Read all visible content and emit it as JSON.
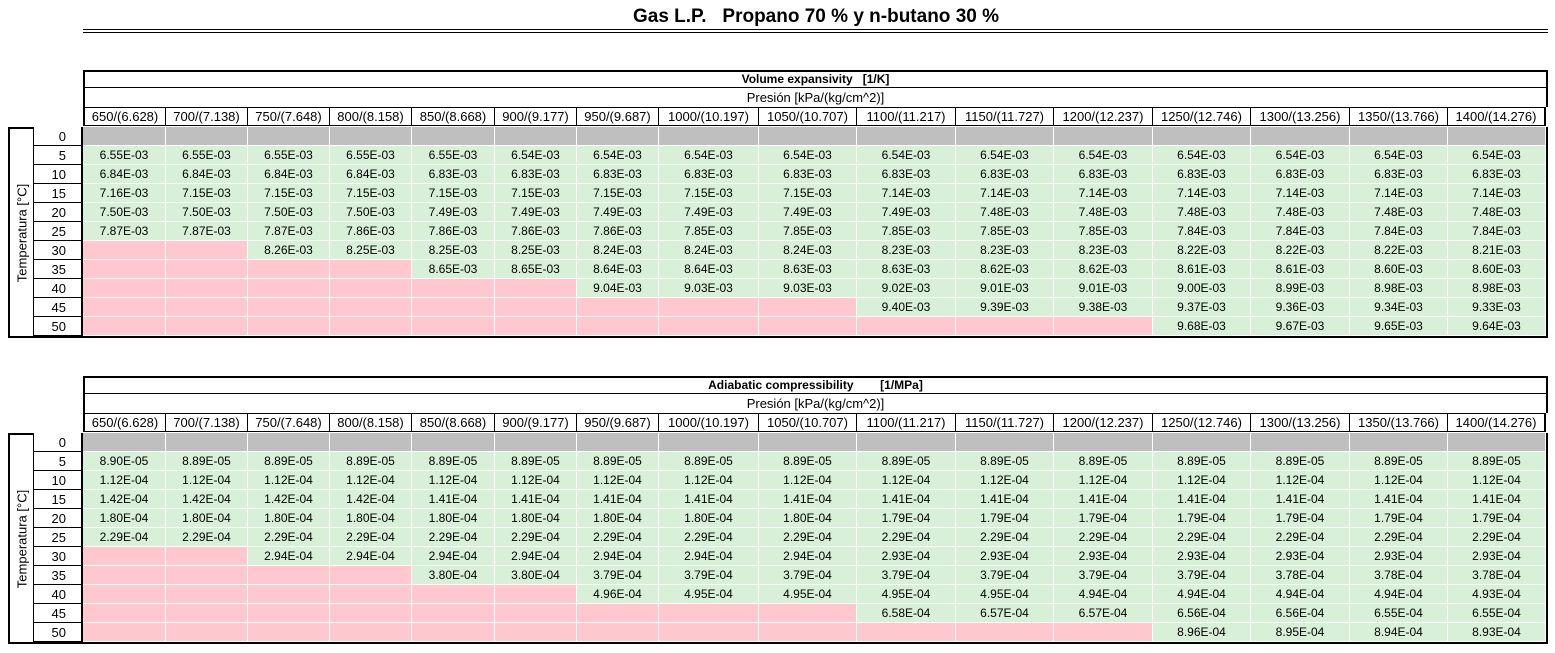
{
  "title": "Gas L.P.   Propano 70 % y n-butano 30 %",
  "colors": {
    "gray": "#bfbfbf",
    "green": "#d8f0d8",
    "pink": "#ffc7ce"
  },
  "pressures": [
    "650/(6.628)",
    "700/(7.138)",
    "750/(7.648)",
    "800/(8.158)",
    "850/(8.668)",
    "900/(9.177)",
    "950/(9.687)",
    "1000/(10.197)",
    "1050/(10.707)",
    "1100/(11.217)",
    "1150/(11.727)",
    "1200/(12.237)",
    "1250/(12.746)",
    "1300/(13.256)",
    "1350/(13.766)",
    "1400/(14.276)"
  ],
  "temperatures": [
    "0",
    "5",
    "10",
    "15",
    "20",
    "25",
    "30",
    "35",
    "40",
    "45",
    "50"
  ],
  "pressure_label": "Presión [kPa/(kg/cm^2)]",
  "temperature_label": "Temperatura [°C]",
  "tables": [
    {
      "title": "Volume expansivity   [1/K]",
      "rows": [
        [
          "gray",
          "gray",
          "gray",
          "gray",
          "gray",
          "gray",
          "gray",
          "gray",
          "gray",
          "gray",
          "gray",
          "gray",
          "gray",
          "gray",
          "gray",
          "gray"
        ],
        [
          "6.55E-03",
          "6.55E-03",
          "6.55E-03",
          "6.55E-03",
          "6.55E-03",
          "6.54E-03",
          "6.54E-03",
          "6.54E-03",
          "6.54E-03",
          "6.54E-03",
          "6.54E-03",
          "6.54E-03",
          "6.54E-03",
          "6.54E-03",
          "6.54E-03",
          "6.54E-03"
        ],
        [
          "6.84E-03",
          "6.84E-03",
          "6.84E-03",
          "6.84E-03",
          "6.83E-03",
          "6.83E-03",
          "6.83E-03",
          "6.83E-03",
          "6.83E-03",
          "6.83E-03",
          "6.83E-03",
          "6.83E-03",
          "6.83E-03",
          "6.83E-03",
          "6.83E-03",
          "6.83E-03"
        ],
        [
          "7.16E-03",
          "7.15E-03",
          "7.15E-03",
          "7.15E-03",
          "7.15E-03",
          "7.15E-03",
          "7.15E-03",
          "7.15E-03",
          "7.15E-03",
          "7.14E-03",
          "7.14E-03",
          "7.14E-03",
          "7.14E-03",
          "7.14E-03",
          "7.14E-03",
          "7.14E-03"
        ],
        [
          "7.50E-03",
          "7.50E-03",
          "7.50E-03",
          "7.50E-03",
          "7.49E-03",
          "7.49E-03",
          "7.49E-03",
          "7.49E-03",
          "7.49E-03",
          "7.49E-03",
          "7.48E-03",
          "7.48E-03",
          "7.48E-03",
          "7.48E-03",
          "7.48E-03",
          "7.48E-03"
        ],
        [
          "7.87E-03",
          "7.87E-03",
          "7.87E-03",
          "7.86E-03",
          "7.86E-03",
          "7.86E-03",
          "7.86E-03",
          "7.85E-03",
          "7.85E-03",
          "7.85E-03",
          "7.85E-03",
          "7.85E-03",
          "7.84E-03",
          "7.84E-03",
          "7.84E-03",
          "7.84E-03"
        ],
        [
          "pink",
          "pink",
          "8.26E-03",
          "8.25E-03",
          "8.25E-03",
          "8.25E-03",
          "8.24E-03",
          "8.24E-03",
          "8.24E-03",
          "8.23E-03",
          "8.23E-03",
          "8.23E-03",
          "8.22E-03",
          "8.22E-03",
          "8.22E-03",
          "8.21E-03"
        ],
        [
          "pink",
          "pink",
          "pink",
          "pink",
          "8.65E-03",
          "8.65E-03",
          "8.64E-03",
          "8.64E-03",
          "8.63E-03",
          "8.63E-03",
          "8.62E-03",
          "8.62E-03",
          "8.61E-03",
          "8.61E-03",
          "8.60E-03",
          "8.60E-03"
        ],
        [
          "pink",
          "pink",
          "pink",
          "pink",
          "pink",
          "pink",
          "9.04E-03",
          "9.03E-03",
          "9.03E-03",
          "9.02E-03",
          "9.01E-03",
          "9.01E-03",
          "9.00E-03",
          "8.99E-03",
          "8.98E-03",
          "8.98E-03"
        ],
        [
          "pink",
          "pink",
          "pink",
          "pink",
          "pink",
          "pink",
          "pink",
          "pink",
          "pink",
          "9.40E-03",
          "9.39E-03",
          "9.38E-03",
          "9.37E-03",
          "9.36E-03",
          "9.34E-03",
          "9.33E-03"
        ],
        [
          "pink",
          "pink",
          "pink",
          "pink",
          "pink",
          "pink",
          "pink",
          "pink",
          "pink",
          "pink",
          "pink",
          "pink",
          "9.68E-03",
          "9.67E-03",
          "9.65E-03",
          "9.64E-03"
        ]
      ]
    },
    {
      "title": "Adiabatic compressibility        [1/MPa]",
      "rows": [
        [
          "gray",
          "gray",
          "gray",
          "gray",
          "gray",
          "gray",
          "gray",
          "gray",
          "gray",
          "gray",
          "gray",
          "gray",
          "gray",
          "gray",
          "gray",
          "gray"
        ],
        [
          "8.90E-05",
          "8.89E-05",
          "8.89E-05",
          "8.89E-05",
          "8.89E-05",
          "8.89E-05",
          "8.89E-05",
          "8.89E-05",
          "8.89E-05",
          "8.89E-05",
          "8.89E-05",
          "8.89E-05",
          "8.89E-05",
          "8.89E-05",
          "8.89E-05",
          "8.89E-05"
        ],
        [
          "1.12E-04",
          "1.12E-04",
          "1.12E-04",
          "1.12E-04",
          "1.12E-04",
          "1.12E-04",
          "1.12E-04",
          "1.12E-04",
          "1.12E-04",
          "1.12E-04",
          "1.12E-04",
          "1.12E-04",
          "1.12E-04",
          "1.12E-04",
          "1.12E-04",
          "1.12E-04"
        ],
        [
          "1.42E-04",
          "1.42E-04",
          "1.42E-04",
          "1.42E-04",
          "1.41E-04",
          "1.41E-04",
          "1.41E-04",
          "1.41E-04",
          "1.41E-04",
          "1.41E-04",
          "1.41E-04",
          "1.41E-04",
          "1.41E-04",
          "1.41E-04",
          "1.41E-04",
          "1.41E-04"
        ],
        [
          "1.80E-04",
          "1.80E-04",
          "1.80E-04",
          "1.80E-04",
          "1.80E-04",
          "1.80E-04",
          "1.80E-04",
          "1.80E-04",
          "1.80E-04",
          "1.79E-04",
          "1.79E-04",
          "1.79E-04",
          "1.79E-04",
          "1.79E-04",
          "1.79E-04",
          "1.79E-04"
        ],
        [
          "2.29E-04",
          "2.29E-04",
          "2.29E-04",
          "2.29E-04",
          "2.29E-04",
          "2.29E-04",
          "2.29E-04",
          "2.29E-04",
          "2.29E-04",
          "2.29E-04",
          "2.29E-04",
          "2.29E-04",
          "2.29E-04",
          "2.29E-04",
          "2.29E-04",
          "2.29E-04"
        ],
        [
          "pink",
          "pink",
          "2.94E-04",
          "2.94E-04",
          "2.94E-04",
          "2.94E-04",
          "2.94E-04",
          "2.94E-04",
          "2.94E-04",
          "2.93E-04",
          "2.93E-04",
          "2.93E-04",
          "2.93E-04",
          "2.93E-04",
          "2.93E-04",
          "2.93E-04"
        ],
        [
          "pink",
          "pink",
          "pink",
          "pink",
          "3.80E-04",
          "3.80E-04",
          "3.79E-04",
          "3.79E-04",
          "3.79E-04",
          "3.79E-04",
          "3.79E-04",
          "3.79E-04",
          "3.79E-04",
          "3.78E-04",
          "3.78E-04",
          "3.78E-04"
        ],
        [
          "pink",
          "pink",
          "pink",
          "pink",
          "pink",
          "pink",
          "4.96E-04",
          "4.95E-04",
          "4.95E-04",
          "4.95E-04",
          "4.95E-04",
          "4.94E-04",
          "4.94E-04",
          "4.94E-04",
          "4.94E-04",
          "4.93E-04"
        ],
        [
          "pink",
          "pink",
          "pink",
          "pink",
          "pink",
          "pink",
          "pink",
          "pink",
          "pink",
          "6.58E-04",
          "6.57E-04",
          "6.57E-04",
          "6.56E-04",
          "6.56E-04",
          "6.55E-04",
          "6.55E-04"
        ],
        [
          "pink",
          "pink",
          "pink",
          "pink",
          "pink",
          "pink",
          "pink",
          "pink",
          "pink",
          "pink",
          "pink",
          "pink",
          "8.96E-04",
          "8.95E-04",
          "8.94E-04",
          "8.93E-04"
        ]
      ]
    }
  ]
}
